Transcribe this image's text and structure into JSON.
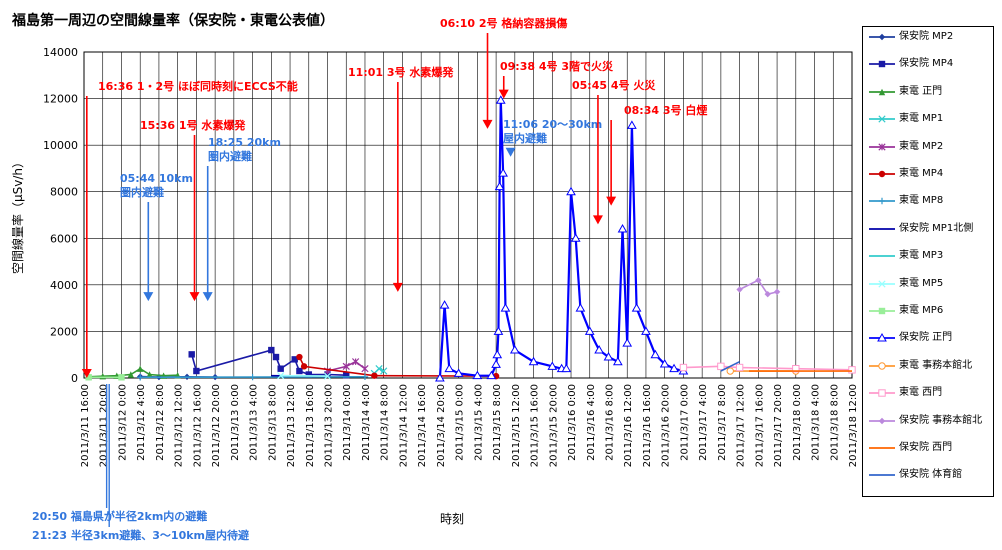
{
  "chart_data": {
    "type": "line",
    "title": "福島第一周辺の空間線量率（保安院・東電公表値）",
    "xlabel": "時刻",
    "ylabel": "空間線量率（μSv/h）",
    "ylim": [
      0,
      14000
    ],
    "yticks": [
      0,
      2000,
      4000,
      6000,
      8000,
      10000,
      12000,
      14000
    ],
    "xrange": [
      "2011/3/11 16:00",
      "2011/3/18 12:00"
    ],
    "xticks": [
      "2011/3/11 16:00",
      "2011/3/11 20:00",
      "2011/3/12 0:00",
      "2011/3/12 4:00",
      "2011/3/12 8:00",
      "2011/3/12 12:00",
      "2011/3/12 16:00",
      "2011/3/12 20:00",
      "2011/3/13 0:00",
      "2011/3/13 4:00",
      "2011/3/13 8:00",
      "2011/3/13 12:00",
      "2011/3/13 16:00",
      "2011/3/13 20:00",
      "2011/3/14 0:00",
      "2011/3/14 4:00",
      "2011/3/14 8:00",
      "2011/3/14 12:00",
      "2011/3/14 16:00",
      "2011/3/14 20:00",
      "2011/3/15 0:00",
      "2011/3/15 4:00",
      "2011/3/15 8:00",
      "2011/3/15 12:00",
      "2011/3/15 16:00",
      "2011/3/15 20:00",
      "2011/3/16 0:00",
      "2011/3/16 4:00",
      "2011/3/16 8:00",
      "2011/3/16 12:00",
      "2011/3/16 16:00",
      "2011/3/16 20:00",
      "2011/3/17 0:00",
      "2011/3/17 4:00",
      "2011/3/17 8:00",
      "2011/3/17 12:00",
      "2011/3/17 16:00",
      "2011/3/17 20:00",
      "2011/3/18 0:00",
      "2011/3/18 4:00",
      "2011/3/18 8:00",
      "2011/3/18 12:00"
    ],
    "grid": true,
    "legend_position": "right",
    "series": [
      {
        "name": "保安院 MP2",
        "color": "#1f3f9f",
        "marker": "diamond",
        "points": [
          [
            "2011/3/12 4:00",
            60
          ],
          [
            "2011/3/12 8:00",
            40
          ],
          [
            "2011/3/12 14:00",
            50
          ],
          [
            "2011/3/12 20:00",
            40
          ]
        ]
      },
      {
        "name": "保安院 MP4",
        "color": "#1a1aa6",
        "marker": "square",
        "points": [
          [
            "2011/3/12 15:00",
            1015
          ],
          [
            "2011/3/12 16:00",
            300
          ],
          [
            "2011/3/13 8:00",
            1200
          ],
          [
            "2011/3/13 9:00",
            900
          ],
          [
            "2011/3/13 10:00",
            400
          ],
          [
            "2011/3/13 13:00",
            800
          ],
          [
            "2011/3/13 14:00",
            300
          ],
          [
            "2011/3/13 16:00",
            150
          ],
          [
            "2011/3/13 20:00",
            150
          ],
          [
            "2011/3/14 0:00",
            120
          ]
        ]
      },
      {
        "name": "東電 正門",
        "color": "#339933",
        "marker": "triangle",
        "points": [
          [
            "2011/3/11 17:00",
            50
          ],
          [
            "2011/3/11 20:00",
            80
          ],
          [
            "2011/3/11 23:00",
            100
          ],
          [
            "2011/3/12 2:00",
            150
          ],
          [
            "2011/3/12 4:00",
            400
          ],
          [
            "2011/3/12 6:00",
            150
          ],
          [
            "2011/3/12 9:00",
            100
          ],
          [
            "2011/3/12 12:00",
            120
          ]
        ]
      },
      {
        "name": "東電 MP1",
        "color": "#33cccc",
        "marker": "x",
        "points": [
          [
            "2011/3/14 6:00",
            200
          ],
          [
            "2011/3/14 7:00",
            400
          ],
          [
            "2011/3/14 8:00",
            300
          ]
        ]
      },
      {
        "name": "東電 MP2",
        "color": "#993399",
        "marker": "star",
        "points": [
          [
            "2011/3/13 20:00",
            300
          ],
          [
            "2011/3/14 0:00",
            500
          ],
          [
            "2011/3/14 2:00",
            700
          ],
          [
            "2011/3/14 4:00",
            400
          ]
        ]
      },
      {
        "name": "東電 MP4",
        "color": "#cc0000",
        "marker": "circle",
        "points": [
          [
            "2011/3/13 14:00",
            900
          ],
          [
            "2011/3/13 15:00",
            500
          ],
          [
            "2011/3/14 6:00",
            100
          ],
          [
            "2011/3/15 8:00",
            80
          ]
        ]
      },
      {
        "name": "東電 MP8",
        "color": "#3399cc",
        "marker": "plus",
        "points": [
          [
            "2011/3/12 4:00",
            30
          ],
          [
            "2011/3/13 4:00",
            40
          ],
          [
            "2011/3/14 4:00",
            50
          ]
        ]
      },
      {
        "name": "保安院 MP1北側",
        "color": "#0000aa",
        "marker": "none",
        "points": [
          [
            "2011/3/13 8:00",
            100
          ],
          [
            "2011/3/13 20:00",
            80
          ]
        ]
      },
      {
        "name": "東電 MP3",
        "color": "#33cccc",
        "marker": "line",
        "points": [
          [
            "2011/3/13 10:00",
            100
          ],
          [
            "2011/3/13 20:00",
            80
          ]
        ]
      },
      {
        "name": "東電 MP5",
        "color": "#99ffff",
        "marker": "x",
        "points": [
          [
            "2011/3/13 10:00",
            100
          ],
          [
            "2011/3/13 20:00",
            80
          ]
        ]
      },
      {
        "name": "東電 MP6",
        "color": "#99ee99",
        "marker": "square",
        "points": [
          [
            "2011/3/11 17:00",
            30
          ],
          [
            "2011/3/12 0:00",
            30
          ]
        ]
      },
      {
        "name": "保安院 正門",
        "color": "#0000ff",
        "marker": "triangle-open",
        "points": [
          [
            "2011/3/14 20:00",
            0
          ],
          [
            "2011/3/14 21:00",
            3130
          ],
          [
            "2011/3/14 22:00",
            400
          ],
          [
            "2011/3/15 0:00",
            200
          ],
          [
            "2011/3/15 4:00",
            100
          ],
          [
            "2011/3/15 7:00",
            100
          ],
          [
            "2011/3/15 8:00",
            583
          ],
          [
            "2011/3/15 8:15",
            1000
          ],
          [
            "2011/3/15 8:30",
            2000
          ],
          [
            "2011/3/15 8:45",
            8217
          ],
          [
            "2011/3/15 9:00",
            11930
          ],
          [
            "2011/3/15 9:30",
            8800
          ],
          [
            "2011/3/15 10:00",
            3000
          ],
          [
            "2011/3/15 12:00",
            1200
          ],
          [
            "2011/3/15 16:00",
            700
          ],
          [
            "2011/3/15 20:00",
            500
          ],
          [
            "2011/3/15 22:00",
            400
          ],
          [
            "2011/3/15 23:00",
            400
          ],
          [
            "2011/3/16 0:00",
            8000
          ],
          [
            "2011/3/16 1:00",
            6000
          ],
          [
            "2011/3/16 2:00",
            3000
          ],
          [
            "2011/3/16 4:00",
            2000
          ],
          [
            "2011/3/16 6:00",
            1200
          ],
          [
            "2011/3/16 8:00",
            900
          ],
          [
            "2011/3/16 10:00",
            700
          ],
          [
            "2011/3/16 11:00",
            6400
          ],
          [
            "2011/3/16 12:00",
            1500
          ],
          [
            "2011/3/16 13:00",
            10850
          ],
          [
            "2011/3/16 14:00",
            3000
          ],
          [
            "2011/3/16 16:00",
            2000
          ],
          [
            "2011/3/16 18:00",
            1000
          ],
          [
            "2011/3/16 20:00",
            600
          ],
          [
            "2011/3/16 22:00",
            400
          ],
          [
            "2011/3/17 0:00",
            300
          ]
        ]
      },
      {
        "name": "東電 事務本館北",
        "color": "#ff9933",
        "marker": "circle-open",
        "points": [
          [
            "2011/3/17 10:00",
            300
          ],
          [
            "2011/3/18 0:00",
            300
          ]
        ]
      },
      {
        "name": "東電 西門",
        "color": "#ff99cc",
        "marker": "square-open",
        "points": [
          [
            "2011/3/17 0:00",
            450
          ],
          [
            "2011/3/17 8:00",
            500
          ],
          [
            "2011/3/17 12:00",
            450
          ],
          [
            "2011/3/18 0:00",
            400
          ],
          [
            "2011/3/18 12:00",
            350
          ]
        ]
      },
      {
        "name": "保安院 事務本館北",
        "color": "#bb88dd",
        "marker": "diamond",
        "points": [
          [
            "2011/3/17 12:00",
            3800
          ],
          [
            "2011/3/17 16:00",
            4200
          ],
          [
            "2011/3/17 18:00",
            3600
          ],
          [
            "2011/3/17 20:00",
            3700
          ]
        ]
      },
      {
        "name": "保安院 西門",
        "color": "#ff6600",
        "marker": "line",
        "points": [
          [
            "2011/3/17 14:00",
            300
          ],
          [
            "2011/3/18 12:00",
            300
          ]
        ]
      },
      {
        "name": "保安院 体育館",
        "color": "#3366cc",
        "marker": "line",
        "points": [
          [
            "2011/3/17 8:00",
            300
          ],
          [
            "2011/3/17 12:00",
            700
          ]
        ]
      }
    ],
    "annotations": [
      {
        "text": "16:36 1・2号 ほぼ同時刻にECCS不能",
        "color": "#ff0000",
        "arrow_x": "2011/3/11 16:36",
        "arrow_y": 0
      },
      {
        "text": "15:36 1号 水素爆発",
        "color": "#ff0000",
        "arrow_x": "2011/3/12 15:36",
        "arrow_y": 3300
      },
      {
        "text": "18:25 20km\n圏内避難",
        "color": "#3377dd",
        "arrow_x": "2011/3/12 18:25",
        "arrow_y": 3300
      },
      {
        "text": "05:44 10km\n圏内避難",
        "color": "#3377dd",
        "arrow_x": "2011/3/12 5:44",
        "arrow_y": 3300
      },
      {
        "text": "11:01 3号 水素爆発",
        "color": "#ff0000",
        "arrow_x": "2011/3/14 11:01",
        "arrow_y": 3700
      },
      {
        "text": "06:10 2号 格納容器損傷",
        "color": "#ff0000",
        "arrow_x": "2011/3/15 6:10",
        "arrow_y": 10700
      },
      {
        "text": "09:38 4号 3階で火災",
        "color": "#ff0000",
        "arrow_x": "2011/3/15 9:38",
        "arrow_y": 12000
      },
      {
        "text": "11:06 20～30km\n屋内避難",
        "color": "#3377dd",
        "arrow_x": "2011/3/15 11:06",
        "arrow_y": 9500
      },
      {
        "text": "05:45 4号 火災",
        "color": "#ff0000",
        "arrow_x": "2011/3/16 5:45",
        "arrow_y": 6600
      },
      {
        "text": "08:34 3号 白煙",
        "color": "#ff0000",
        "arrow_x": "2011/3/16 8:34",
        "arrow_y": 7400
      }
    ],
    "bottom_notes": [
      {
        "text": "20:50 福島県が半径2km内の避難",
        "color": "#3377dd",
        "arrow_x": "2011/3/11 20:50"
      },
      {
        "text": "21:23 半径3km避難、3～10km屋内待避",
        "color": "#3377dd",
        "arrow_x": "2011/3/11 21:23"
      }
    ]
  }
}
